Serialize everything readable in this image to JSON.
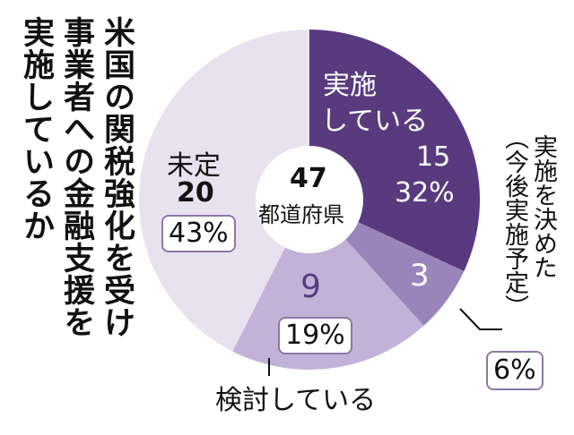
{
  "headline": {
    "line1": "米国の関税強化を受け",
    "line2": "事業者への金融支援を",
    "line3": "実施しているか"
  },
  "chart_data": {
    "type": "pie",
    "center_label": {
      "number": "47",
      "unit": "都道府県"
    },
    "slices": [
      {
        "label_line1": "実施",
        "label_line2": "している",
        "count": "15",
        "percent": "32%",
        "value": 15,
        "color": "#5a3a7e",
        "text_color": "#ffffff"
      },
      {
        "label_line1": "実施を決めた",
        "label_line2": "（今後実施予定）",
        "count": "3",
        "percent": "6%",
        "value": 3,
        "color": "#9a84ba",
        "text_color": "#ffffff"
      },
      {
        "label": "検討している",
        "count": "9",
        "percent": "19%",
        "value": 9,
        "color": "#c2b2d8",
        "text_color": "#5a3a7e"
      },
      {
        "label_line1": "未定",
        "count": "20",
        "percent": "43%",
        "value": 20,
        "color": "#e8e1f0",
        "text_color": "#111111"
      }
    ]
  }
}
